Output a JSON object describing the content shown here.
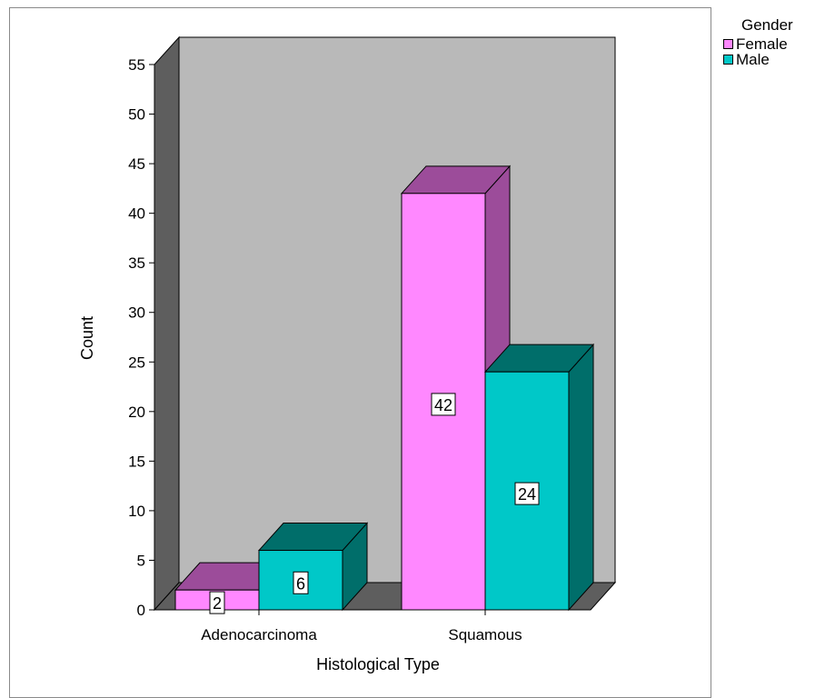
{
  "chart_data": {
    "type": "bar",
    "title": "",
    "xlabel": "Histological Type",
    "ylabel": "Count",
    "categories": [
      "Adenocarcinoma",
      "Squamous"
    ],
    "series": [
      {
        "name": "Female",
        "values": [
          2,
          42
        ],
        "color": "#ff88ff",
        "top_color": "#9c4c9a",
        "side_color": "#9c4c9a"
      },
      {
        "name": "Male",
        "values": [
          6,
          24
        ],
        "color": "#00c8c8",
        "top_color": "#006e6a",
        "side_color": "#006e6a"
      }
    ],
    "ylim": [
      0,
      55
    ],
    "yticks": [
      "0",
      "5",
      "10",
      "15",
      "20",
      "25",
      "30",
      "35",
      "40",
      "45",
      "50",
      "55"
    ],
    "data_labels": true,
    "legend": {
      "title": "Gender",
      "placement": "top-right"
    },
    "style": "3d",
    "backwall_color": "#b9b9b9",
    "floor_color": "#5e5e5e"
  }
}
